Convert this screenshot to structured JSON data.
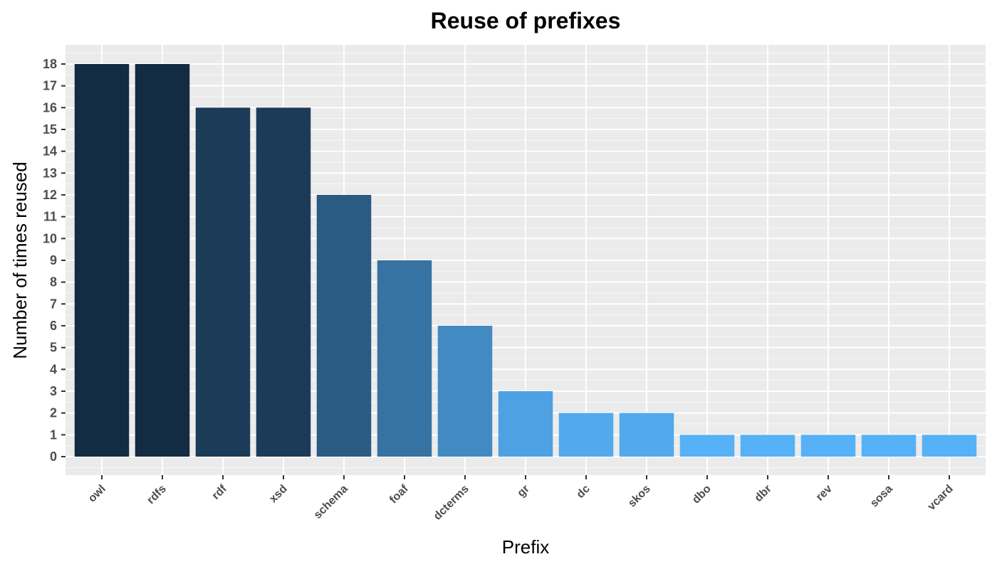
{
  "chart_data": {
    "type": "bar",
    "title": "Reuse of prefixes",
    "xlabel": "Prefix",
    "ylabel": "Number of times reused",
    "categories": [
      "owl",
      "rdfs",
      "rdf",
      "xsd",
      "schema",
      "foaf",
      "dcterms",
      "gr",
      "dc",
      "skos",
      "dbo",
      "dbr",
      "rev",
      "sosa",
      "vcard"
    ],
    "values": [
      18,
      18,
      16,
      16,
      12,
      9,
      6,
      3,
      2,
      2,
      1,
      1,
      1,
      1,
      1
    ],
    "ylim": [
      0,
      18
    ],
    "yticks": [
      0,
      1,
      2,
      3,
      4,
      5,
      6,
      7,
      8,
      9,
      10,
      11,
      12,
      13,
      14,
      15,
      16,
      17,
      18
    ],
    "grid": true,
    "legend": "none",
    "colors": {
      "panel_background": "#ebebeb",
      "grid_major": "#ffffff",
      "fill_low": "#56b1f7",
      "fill_high": "#132b43"
    }
  }
}
